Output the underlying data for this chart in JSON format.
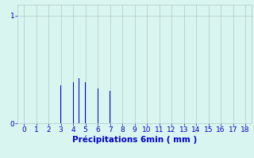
{
  "bar_positions": [
    3,
    4,
    4.5,
    5,
    6,
    7
  ],
  "bar_heights": [
    0.35,
    0.38,
    0.42,
    0.38,
    0.32,
    0.3
  ],
  "bar_width": 0.07,
  "bar_color": "#0000cc",
  "background_color": "#d8f5f0",
  "grid_color": "#b0c8c8",
  "text_color": "#0000cc",
  "xlabel": "Précipitations 6min ( mm )",
  "xlabel_fontsize": 7.5,
  "ylabel_ticks": [
    0,
    1
  ],
  "xlim": [
    -0.5,
    18.5
  ],
  "ylim": [
    0,
    1.1
  ],
  "tick_fontsize": 6.5,
  "xticks": [
    0,
    1,
    2,
    3,
    4,
    5,
    6,
    7,
    8,
    9,
    10,
    11,
    12,
    13,
    14,
    15,
    16,
    17,
    18
  ]
}
